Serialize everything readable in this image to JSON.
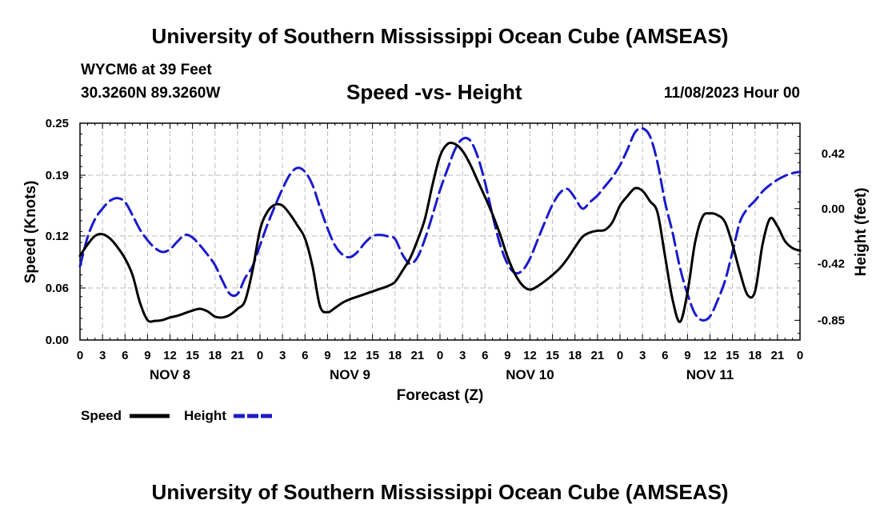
{
  "header": {
    "title": "University of Southern Mississippi Ocean Cube (AMSEAS)",
    "station": "WYCM6 at 39 Feet",
    "coords": "30.3260N  89.3260W",
    "datetime": "11/08/2023 Hour 00"
  },
  "footer": {
    "title": "University of Southern Mississippi Ocean Cube (AMSEAS)"
  },
  "chart_data": {
    "type": "line",
    "title": "Speed -vs- Height",
    "xlabel": "Forecast (Z)",
    "ylabel": "Speed (Knots)",
    "y2label": "Height (feet)",
    "xlim": [
      0,
      96
    ],
    "ylim": [
      0,
      0.25
    ],
    "y2lim": [
      -1.0,
      0.65
    ],
    "x_tick_values": [
      0,
      3,
      6,
      9,
      12,
      15,
      18,
      21,
      24,
      27,
      30,
      33,
      36,
      39,
      42,
      45,
      48,
      51,
      54,
      57,
      60,
      63,
      66,
      69,
      72,
      75,
      78,
      81,
      84,
      87,
      90,
      93,
      96
    ],
    "x_tick_labels": [
      "0",
      "3",
      "6",
      "9",
      "12",
      "15",
      "18",
      "21",
      "0",
      "3",
      "6",
      "9",
      "12",
      "15",
      "18",
      "21",
      "0",
      "3",
      "6",
      "9",
      "12",
      "15",
      "18",
      "21",
      "0",
      "3",
      "6",
      "9",
      "12",
      "15",
      "18",
      "21",
      "0"
    ],
    "day_labels": [
      {
        "label": "NOV 8",
        "x": 12
      },
      {
        "label": "NOV 9",
        "x": 36
      },
      {
        "label": "NOV 10",
        "x": 60
      },
      {
        "label": "NOV 11",
        "x": 84
      }
    ],
    "y_ticks": [
      0.0,
      0.06,
      0.12,
      0.19,
      0.25
    ],
    "y_tick_labels": [
      "0.00",
      "0.06",
      "0.12",
      "0.19",
      "0.25"
    ],
    "y2_ticks": [
      0.42,
      0.0,
      -0.42,
      -0.85
    ],
    "y2_tick_labels": [
      "0.42",
      "0.00",
      "-0.42",
      "-0.85"
    ],
    "grid": true,
    "legend_placement": "bottom-left",
    "series": [
      {
        "name": "Speed",
        "axis": "left",
        "color": "#000000",
        "dash": "solid",
        "x": [
          0,
          1,
          2,
          3,
          4,
          5,
          6,
          7,
          8,
          9,
          10,
          11,
          12,
          13,
          14,
          15,
          16,
          17,
          18,
          19,
          20,
          21,
          22,
          23,
          24,
          25,
          26,
          27,
          28,
          29,
          30,
          31,
          32,
          33,
          34,
          35,
          36,
          37,
          38,
          39,
          40,
          41,
          42,
          43,
          44,
          45,
          46,
          47,
          48,
          49,
          50,
          51,
          52,
          53,
          54,
          55,
          56,
          57,
          58,
          59,
          60,
          61,
          62,
          63,
          64,
          65,
          66,
          67,
          68,
          69,
          70,
          71,
          72,
          73,
          74,
          75,
          76,
          77,
          78,
          79,
          80,
          81,
          82,
          83,
          84,
          85,
          86,
          87,
          88,
          89,
          90,
          91,
          92,
          93,
          94,
          95,
          96
        ],
        "values": [
          0.097,
          0.11,
          0.12,
          0.122,
          0.117,
          0.107,
          0.094,
          0.075,
          0.043,
          0.023,
          0.022,
          0.023,
          0.026,
          0.028,
          0.031,
          0.034,
          0.036,
          0.033,
          0.027,
          0.026,
          0.029,
          0.036,
          0.045,
          0.08,
          0.127,
          0.148,
          0.156,
          0.155,
          0.145,
          0.132,
          0.117,
          0.085,
          0.039,
          0.032,
          0.037,
          0.043,
          0.047,
          0.05,
          0.053,
          0.056,
          0.059,
          0.062,
          0.067,
          0.08,
          0.094,
          0.115,
          0.14,
          0.179,
          0.212,
          0.226,
          0.226,
          0.218,
          0.203,
          0.184,
          0.165,
          0.145,
          0.122,
          0.096,
          0.076,
          0.063,
          0.058,
          0.062,
          0.068,
          0.075,
          0.083,
          0.094,
          0.107,
          0.119,
          0.124,
          0.126,
          0.127,
          0.136,
          0.155,
          0.166,
          0.175,
          0.172,
          0.16,
          0.147,
          0.097,
          0.047,
          0.021,
          0.055,
          0.112,
          0.142,
          0.146,
          0.144,
          0.136,
          0.11,
          0.078,
          0.052,
          0.056,
          0.11,
          0.14,
          0.131,
          0.114,
          0.106,
          0.103
        ]
      },
      {
        "name": "Height",
        "axis": "right",
        "color": "#1a1acc",
        "dash": "dashed",
        "x": [
          0,
          1,
          2,
          3,
          4,
          5,
          6,
          7,
          8,
          9,
          10,
          11,
          12,
          13,
          14,
          15,
          16,
          17,
          18,
          19,
          20,
          21,
          22,
          23,
          24,
          25,
          26,
          27,
          28,
          29,
          30,
          31,
          32,
          33,
          34,
          35,
          36,
          37,
          38,
          39,
          40,
          41,
          42,
          43,
          44,
          45,
          46,
          47,
          48,
          49,
          50,
          51,
          52,
          53,
          54,
          55,
          56,
          57,
          58,
          59,
          60,
          61,
          62,
          63,
          64,
          65,
          66,
          67,
          68,
          69,
          70,
          71,
          72,
          73,
          74,
          75,
          76,
          77,
          78,
          79,
          80,
          81,
          82,
          83,
          84,
          85,
          86,
          87,
          88,
          89,
          90,
          91,
          92,
          93,
          94,
          95,
          96
        ],
        "values": [
          -0.44,
          -0.22,
          -0.08,
          0.0,
          0.06,
          0.08,
          0.05,
          -0.05,
          -0.16,
          -0.24,
          -0.3,
          -0.33,
          -0.31,
          -0.25,
          -0.2,
          -0.22,
          -0.28,
          -0.35,
          -0.43,
          -0.55,
          -0.65,
          -0.65,
          -0.53,
          -0.44,
          -0.28,
          -0.12,
          0.02,
          0.15,
          0.26,
          0.31,
          0.28,
          0.18,
          0.01,
          -0.15,
          -0.28,
          -0.35,
          -0.37,
          -0.33,
          -0.26,
          -0.21,
          -0.2,
          -0.21,
          -0.23,
          -0.35,
          -0.42,
          -0.37,
          -0.23,
          -0.05,
          0.14,
          0.3,
          0.45,
          0.53,
          0.52,
          0.4,
          0.2,
          -0.05,
          -0.27,
          -0.42,
          -0.49,
          -0.47,
          -0.38,
          -0.24,
          -0.1,
          0.03,
          0.12,
          0.15,
          0.08,
          0.0,
          0.05,
          0.1,
          0.17,
          0.24,
          0.33,
          0.45,
          0.58,
          0.61,
          0.55,
          0.35,
          0.05,
          -0.18,
          -0.45,
          -0.65,
          -0.8,
          -0.85,
          -0.82,
          -0.7,
          -0.55,
          -0.33,
          -0.1,
          0.0,
          0.06,
          0.13,
          0.18,
          0.22,
          0.25,
          0.27,
          0.28
        ]
      }
    ]
  }
}
